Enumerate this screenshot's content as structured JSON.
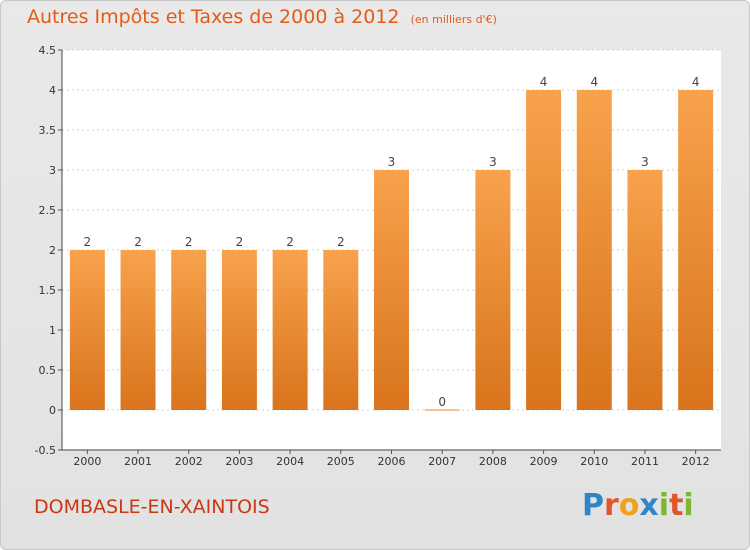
{
  "chart_data": {
    "type": "bar",
    "title": "Autres Impôts et Taxes de 2000 à 2012",
    "subtitle": "(en milliers d'€)",
    "categories": [
      "2000",
      "2001",
      "2002",
      "2003",
      "2004",
      "2005",
      "2006",
      "2007",
      "2008",
      "2009",
      "2010",
      "2011",
      "2012"
    ],
    "values": [
      2,
      2,
      2,
      2,
      2,
      2,
      3,
      0,
      3,
      4,
      4,
      3,
      4
    ],
    "value_labels": [
      "2",
      "2",
      "2",
      "2",
      "2",
      "2",
      "3",
      "0",
      "3",
      "4",
      "4",
      "3",
      "4"
    ],
    "y_ticks": [
      "-0.5",
      "0",
      "0.5",
      "1",
      "1.5",
      "2",
      "2.5",
      "3",
      "3.5",
      "4",
      "4.5"
    ],
    "ylim": [
      -0.5,
      4.5
    ],
    "grid": "horizontal dashed",
    "bar_color": "#f28a2a"
  },
  "location": "DOMBASLE-EN-XAINTOIS",
  "brand": {
    "letters": [
      "P",
      "r",
      "o",
      "x",
      "i",
      "t",
      "i"
    ],
    "colors": [
      "#2e86c9",
      "#e0562b",
      "#f0a21c",
      "#2e86c9",
      "#7cb82f",
      "#e0562b",
      "#7cb82f"
    ]
  }
}
